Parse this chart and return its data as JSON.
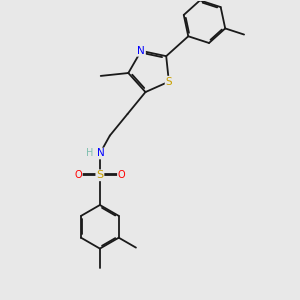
{
  "bg_color": "#e8e8e8",
  "C": "#1a1a1a",
  "N": "#0000ff",
  "S_thz": "#c8a000",
  "S_sul": "#c8a000",
  "O": "#ff0000",
  "H": "#7fbfaf",
  "fs": 6.5,
  "bw": 1.3,
  "dbo": 0.014
}
